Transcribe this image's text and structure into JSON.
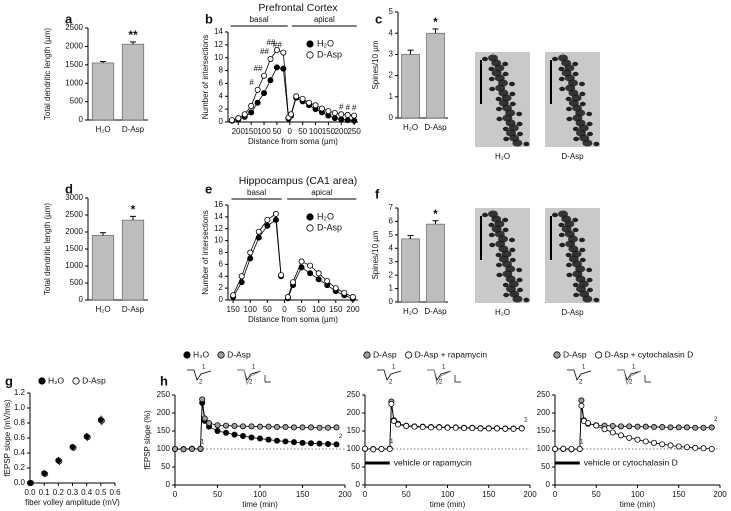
{
  "chart_data": [
    {
      "type": "bar",
      "panel": "a",
      "ylabel": "Total dendritic length (µm)",
      "categories": [
        "H₂O",
        "D-Asp"
      ],
      "values": [
        1550,
        2060
      ],
      "errors": [
        40,
        60
      ],
      "color": "#bdbdbd",
      "significance": "**",
      "ylim": [
        0,
        2500
      ],
      "yticks": [
        0,
        500,
        1000,
        1500,
        2000,
        2500
      ]
    },
    {
      "type": "line",
      "panel": "b",
      "title": "Prefrontal Cortex",
      "regions": [
        "basal",
        "apical"
      ],
      "ylabel": "Number of intersections",
      "xlabel": "Distance from soma (µm)",
      "x": [
        -225,
        -200,
        -175,
        -150,
        -125,
        -100,
        -75,
        -50,
        -25,
        -5,
        0,
        5,
        25,
        50,
        75,
        100,
        125,
        150,
        175,
        200,
        225,
        250
      ],
      "series": [
        {
          "name": "H₂O",
          "color": "#000000",
          "values": [
            0.2,
            0.4,
            0.8,
            1.5,
            3,
            4.5,
            6.5,
            8.5,
            8.3,
            0.5,
            null,
            1,
            3.8,
            3.2,
            2.6,
            2,
            1.5,
            1,
            0.6,
            0.4,
            0.3,
            0.2
          ]
        },
        {
          "name": "D-Asp",
          "color": "#ffffff",
          "values": [
            0.3,
            0.6,
            1.2,
            2.5,
            5,
            7.2,
            9.8,
            11.2,
            10.8,
            0.7,
            null,
            1.2,
            4,
            3.6,
            3,
            2.6,
            2.1,
            1.7,
            1.4,
            1.2,
            1.1,
            1
          ]
        }
      ],
      "annotations": [
        "#",
        "##",
        "##",
        "##",
        "##",
        "#",
        "#",
        "#"
      ],
      "xlim": [
        -240,
        265
      ],
      "xticks": [
        {
          "value": -200,
          "label": "200"
        },
        {
          "value": -150,
          "label": "150"
        },
        {
          "value": -100,
          "label": "100"
        },
        {
          "value": -50,
          "label": "50"
        },
        0,
        50,
        100,
        150,
        200,
        250
      ],
      "ylim": [
        0,
        14
      ],
      "yticks": [
        0,
        2,
        4,
        6,
        8,
        10,
        12,
        14
      ],
      "legend": "upper right"
    },
    {
      "type": "bar",
      "panel": "c",
      "ylabel": "Spines/10 µm",
      "categories": [
        "H₂O",
        "D-Asp"
      ],
      "values": [
        3.0,
        4.0
      ],
      "errors": [
        0.2,
        0.2
      ],
      "color": "#bdbdbd",
      "significance": "*",
      "ylim": [
        0,
        5
      ],
      "yticks": [
        0,
        1,
        2,
        3,
        4,
        5
      ],
      "image_captions": [
        "H₂O",
        "D-Asp"
      ]
    },
    {
      "type": "bar",
      "panel": "d",
      "ylabel": "Total dendritic length (µm)",
      "categories": [
        "H₂O",
        "D-Asp"
      ],
      "values": [
        1900,
        2350
      ],
      "errors": [
        80,
        110
      ],
      "color": "#bdbdbd",
      "significance": "*",
      "ylim": [
        0,
        3000
      ],
      "yticks": [
        0,
        500,
        1000,
        1500,
        2000,
        2500,
        3000
      ]
    },
    {
      "type": "line",
      "panel": "e",
      "title": "Hippocampus (CA1 area)",
      "regions": [
        "basal",
        "apical"
      ],
      "ylabel": "Number of intersections",
      "xlabel": "Distance from soma (µm)",
      "x": [
        -150,
        -125,
        -100,
        -75,
        -50,
        -25,
        -10,
        0,
        10,
        25,
        50,
        75,
        100,
        125,
        150,
        175,
        200
      ],
      "series": [
        {
          "name": "H₂O",
          "color": "#000000",
          "values": [
            0.5,
            3,
            7,
            10.5,
            12.5,
            13.5,
            4,
            null,
            0.3,
            2.5,
            5.5,
            4.5,
            3.5,
            2.5,
            1.5,
            0.8,
            0.2
          ]
        },
        {
          "name": "D-Asp",
          "color": "#ffffff",
          "values": [
            0.8,
            4,
            8,
            11.5,
            13.5,
            14.5,
            4.2,
            null,
            0.5,
            3,
            6.5,
            5.8,
            4.5,
            3.2,
            2,
            1.2,
            0.5
          ]
        }
      ],
      "xlim": [
        -165,
        215
      ],
      "xticks": [
        {
          "value": -150,
          "label": "150"
        },
        {
          "value": -100,
          "label": "100"
        },
        {
          "value": -50,
          "label": "50"
        },
        0,
        50,
        100,
        150,
        200
      ],
      "ylim": [
        0,
        16
      ],
      "yticks": [
        0,
        2,
        4,
        6,
        8,
        10,
        12,
        14,
        16
      ],
      "legend": "upper right"
    },
    {
      "type": "bar",
      "panel": "f",
      "ylabel": "Spines/10 µm",
      "categories": [
        "H₂O",
        "D-Asp"
      ],
      "values": [
        4.7,
        5.8
      ],
      "errors": [
        0.25,
        0.25
      ],
      "color": "#bdbdbd",
      "significance": "*",
      "ylim": [
        0,
        7
      ],
      "yticks": [
        0,
        1,
        2,
        3,
        4,
        5,
        6,
        7
      ],
      "image_captions": [
        "H₂O",
        "D-Asp"
      ]
    },
    {
      "type": "scatter",
      "panel": "g",
      "ylabel": "fEPSP slope (mV/ms)",
      "xlabel": "fiber volley amplitude (mV)",
      "x": [
        0,
        0.1,
        0.2,
        0.3,
        0.4,
        0.5
      ],
      "series": [
        {
          "name": "H₂O",
          "color": "#000000",
          "values": [
            0,
            0.13,
            0.3,
            0.48,
            0.62,
            0.84
          ],
          "errors": [
            0,
            0.03,
            0.05,
            0.04,
            0.05,
            0.06
          ]
        },
        {
          "name": "D-Asp",
          "color": "#ffffff",
          "values": [
            0,
            0.12,
            0.29,
            0.47,
            0.61,
            0.83
          ],
          "errors": [
            0,
            0.03,
            0.05,
            0.04,
            0.05,
            0.06
          ]
        }
      ],
      "xlim": [
        0,
        0.6
      ],
      "xticks": [
        {
          "value": 0,
          "label": "0.0"
        },
        0.1,
        0.2,
        0.3,
        0.4,
        0.5,
        0.6
      ],
      "ylim": [
        0,
        1.2
      ],
      "yticks": [
        {
          "value": 0,
          "label": "0.0"
        },
        0.2,
        0.4,
        0.6,
        0.8,
        {
          "value": 1,
          "label": "1.0"
        },
        1.2
      ],
      "legend": "top"
    },
    {
      "type": "line",
      "panel": "h",
      "ylabel": "fEPSP slope (%)",
      "xlabel": "time (min)",
      "trace_labels": [
        "1",
        "2"
      ],
      "x": [
        0,
        10,
        20,
        30,
        32,
        35,
        40,
        50,
        60,
        70,
        80,
        90,
        100,
        110,
        120,
        130,
        140,
        150,
        160,
        170,
        180,
        190
      ],
      "series": [
        {
          "name": "H₂O",
          "color": "#000000",
          "values": [
            100,
            100,
            101,
            100,
            228,
            178,
            162,
            150,
            145,
            140,
            136,
            132,
            129,
            126,
            123,
            121,
            119,
            117,
            116,
            115,
            114,
            113
          ]
        },
        {
          "name": "D-Asp",
          "color": "#a0a0a0",
          "values": [
            100,
            99,
            100,
            101,
            238,
            185,
            172,
            166,
            165,
            164,
            163,
            163,
            162,
            162,
            161,
            161,
            160,
            160,
            160,
            159,
            159,
            160
          ]
        }
      ],
      "reference_line": 100,
      "xlim": [
        0,
        200
      ],
      "xticks": [
        0,
        50,
        100,
        150,
        200
      ],
      "ylim": [
        0,
        250
      ],
      "yticks": [
        0,
        50,
        100,
        150,
        200,
        250
      ],
      "legend": "top"
    },
    {
      "type": "line",
      "xlabel": "time (min)",
      "trace_labels": [
        "1",
        "2"
      ],
      "x": [
        0,
        10,
        20,
        30,
        32,
        35,
        40,
        50,
        60,
        70,
        80,
        90,
        100,
        110,
        120,
        130,
        140,
        150,
        160,
        170,
        180,
        190
      ],
      "series": [
        {
          "name": "D-Asp",
          "color": "#a0a0a0",
          "values": [
            100,
            100,
            100,
            101,
            232,
            180,
            170,
            165,
            163,
            162,
            161,
            161,
            160,
            160,
            159,
            159,
            158,
            158,
            158,
            157,
            157,
            158
          ]
        },
        {
          "name": "D-Asp + rapamycin",
          "color": "#ffffff",
          "values": [
            101,
            99,
            100,
            100,
            225,
            178,
            168,
            164,
            162,
            161,
            160,
            160,
            159,
            159,
            158,
            158,
            157,
            157,
            157,
            156,
            156,
            157
          ]
        }
      ],
      "treatment": {
        "text": "vehicle or rapamycin",
        "range": [
          0,
          30
        ]
      },
      "reference_line": 100,
      "xlim": [
        0,
        200
      ],
      "xticks": [
        0,
        50,
        100,
        150,
        200
      ],
      "ylim": [
        0,
        250
      ],
      "yticks": [
        0,
        50,
        100,
        150,
        200,
        250
      ],
      "legend": "top"
    },
    {
      "type": "line",
      "xlabel": "time (min)",
      "trace_labels": [
        "1",
        "2"
      ],
      "x": [
        0,
        10,
        20,
        30,
        32,
        35,
        40,
        50,
        60,
        70,
        80,
        90,
        100,
        110,
        120,
        130,
        140,
        150,
        160,
        170,
        180,
        190
      ],
      "series": [
        {
          "name": "D-Asp",
          "color": "#a0a0a0",
          "values": [
            100,
            100,
            99,
            100,
            235,
            180,
            170,
            166,
            165,
            164,
            163,
            163,
            162,
            162,
            161,
            161,
            160,
            160,
            160,
            159,
            159,
            160
          ]
        },
        {
          "name": "D-Asp + cytochalasin D",
          "color": "#ffffff",
          "values": [
            100,
            101,
            100,
            100,
            220,
            178,
            172,
            165,
            155,
            146,
            138,
            131,
            126,
            121,
            117,
            113,
            110,
            107,
            105,
            103,
            102,
            100
          ]
        }
      ],
      "treatment": {
        "text": "vehicle or cytochalasin D",
        "range": [
          0,
          30
        ]
      },
      "reference_line": 100,
      "xlim": [
        0,
        200
      ],
      "xticks": [
        0,
        50,
        100,
        150,
        200
      ],
      "ylim": [
        0,
        250
      ],
      "yticks": [
        0,
        50,
        100,
        150,
        200,
        250
      ],
      "legend": "top"
    }
  ]
}
